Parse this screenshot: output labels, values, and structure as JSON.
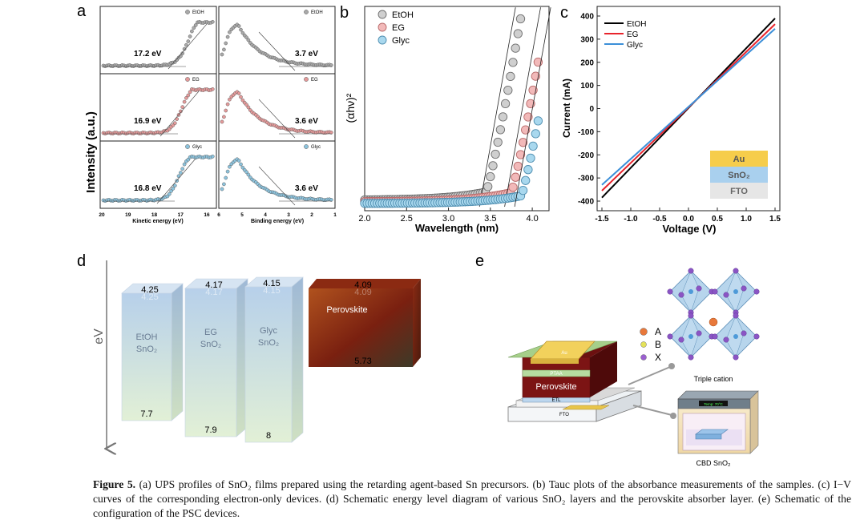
{
  "panels": {
    "a": "a",
    "b": "b",
    "c": "c",
    "d": "d",
    "e": "e"
  },
  "panel_a": {
    "ylabel": "Intensity (a.u.)",
    "rows": [
      {
        "legend": "EtOH",
        "color": "#a9a9a9",
        "left_value": "17.2 eV",
        "right_value": "3.7 eV"
      },
      {
        "legend": "EG",
        "color": "#e49a9a",
        "left_value": "16.9 eV",
        "right_value": "3.6 eV"
      },
      {
        "legend": "Glyc",
        "color": "#8cc3dd",
        "left_value": "16.8 eV",
        "right_value": "3.6 eV"
      }
    ],
    "left_xlabel": "Kinetic energy (eV)",
    "right_xlabel": "Binding energy (eV)",
    "left_ticks": [
      "20",
      "19",
      "18",
      "17",
      "16"
    ],
    "right_ticks": [
      "6",
      "5",
      "4",
      "3",
      "2",
      "1"
    ]
  },
  "chart_data": [
    {
      "type": "scatter",
      "panel": "b",
      "xlabel": "Wavelength (nm)",
      "ylabel": "(αhν)²",
      "xlim": [
        2.0,
        4.2
      ],
      "xticks": [
        "2.0",
        "2.5",
        "3.0",
        "3.5",
        "4.0"
      ],
      "series": [
        {
          "name": "EtOH",
          "color": "#cfcfcf",
          "edge": "#6e6e6e",
          "edge_x": 3.45,
          "onset_start": 3.2
        },
        {
          "name": "EG",
          "color": "#f2b9b9",
          "edge": "#b86a6a",
          "edge_x": 3.75,
          "onset_start": 3.45
        },
        {
          "name": "Glyc",
          "color": "#a9d8ee",
          "edge": "#4f8eb0",
          "edge_x": 3.87,
          "onset_start": 3.65
        }
      ]
    },
    {
      "type": "line",
      "panel": "c",
      "xlabel": "Voltage (V)",
      "ylabel": "Current (mA)",
      "xlim": [
        -1.5,
        1.5
      ],
      "ylim": [
        -400,
        400
      ],
      "xticks": [
        "-1.5",
        "-1.0",
        "-0.5",
        "0.0",
        "0.5",
        "1.0",
        "1.5"
      ],
      "yticks": [
        "400",
        "300",
        "200",
        "100",
        "0",
        "-100",
        "-200",
        "-300",
        "-400"
      ],
      "series": [
        {
          "name": "EtOH",
          "color": "#000000",
          "x": [
            -1.5,
            1.5
          ],
          "y": [
            -385,
            390
          ]
        },
        {
          "name": "EG",
          "color": "#e8242c",
          "x": [
            -1.5,
            1.5
          ],
          "y": [
            -355,
            365
          ]
        },
        {
          "name": "Glyc",
          "color": "#3b8fd8",
          "x": [
            -1.5,
            1.5
          ],
          "y": [
            -330,
            345
          ]
        }
      ],
      "stack": [
        {
          "label": "Au",
          "color": "#f6cd4b"
        },
        {
          "label": "SnO₂",
          "color": "#a9d0ee"
        },
        {
          "label": "FTO",
          "color": "#e6e6e6"
        }
      ]
    }
  ],
  "panel_d": {
    "axis_label": "eV",
    "blocks": [
      {
        "name": "EtOH",
        "sub": "SnO₂",
        "top": "4.25",
        "bottom": "7.7"
      },
      {
        "name": "EG",
        "sub": "SnO₂",
        "top": "4.17",
        "bottom": "7.9"
      },
      {
        "name": "Glyc",
        "sub": "SnO₂",
        "top": "4.15",
        "bottom": "8"
      }
    ],
    "perovskite": {
      "name": "Perovskite",
      "top": "4.09",
      "bottom": "5.73"
    }
  },
  "panel_e": {
    "layers": {
      "au": "Au",
      "ptaa": "PTAA",
      "perovskite": "Perovskite",
      "etl": "ETL",
      "fto": "FTO"
    },
    "legend": [
      {
        "label": "A",
        "color": "#e8783a"
      },
      {
        "label": "B",
        "color": "#e4e25a"
      },
      {
        "label": "X",
        "color": "#9b5fd0"
      }
    ],
    "crystal_label": "Triple cation",
    "bath_label": "CBD SnO₂",
    "bath_display": "Temp: 70°C"
  },
  "caption": {
    "label": "Figure 5.",
    "text": " (a) UPS profiles of SnO₂ films prepared using the retarding agent-based Sn precursors. (b) Tauc plots of the absorbance measurements of the samples. (c) I−V curves of the corresponding electron-only devices. (d) Schematic energy level diagram of various SnO₂ layers and the perovskite absorber layer. (e) Schematic of the configuration of the PSC devices."
  }
}
